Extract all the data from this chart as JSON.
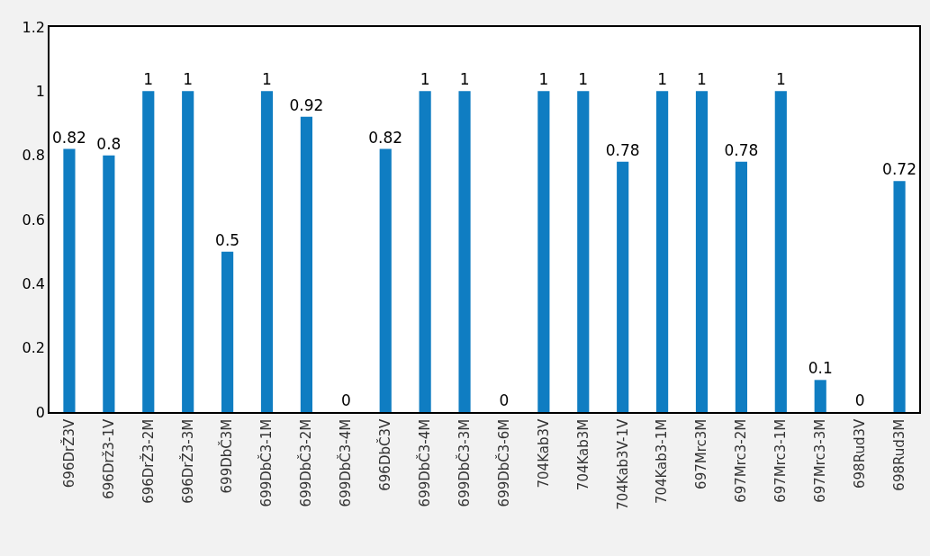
{
  "chart_data": {
    "type": "bar",
    "categories": [
      "696DrŽ3V",
      "696Drž3-1V",
      "696DrŽ3-2M",
      "696DrŽ3-3M",
      "699DbČ3M",
      "699DbČ3-1M",
      "699DbČ3-2M",
      "699DbČ3-4M",
      "696DbČ3V",
      "699DbČ3-4M",
      "699DbČ3-3M",
      "699DbČ3-6M",
      "704Kab3V",
      "704Kab3M",
      "704Kab3V-1V",
      "704Kab3-1M",
      "697Mrc3M",
      "697Mrc3-2M",
      "697Mrc3-1M",
      "697Mrc3-3M",
      "698Rud3V",
      "698Rud3M"
    ],
    "values": [
      0.82,
      0.8,
      1,
      1,
      0.5,
      1,
      0.92,
      0,
      0.82,
      1,
      1,
      0,
      1,
      1,
      0.78,
      1,
      1,
      0.78,
      1,
      0.1,
      0,
      0.72
    ],
    "color": "#0f7dc2",
    "ylim": [
      0,
      1.2
    ],
    "yticks": [
      0,
      0.2,
      0.4,
      0.6,
      0.8,
      1,
      1.2
    ],
    "data_labels": true
  }
}
